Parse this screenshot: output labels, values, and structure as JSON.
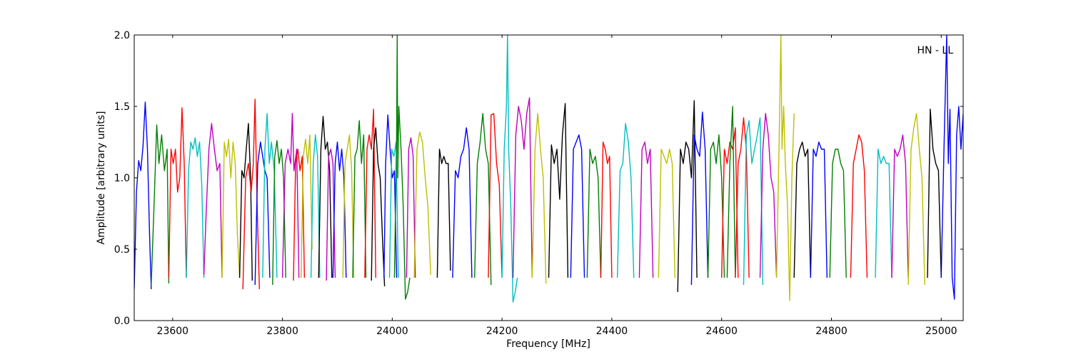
{
  "chart_data": {
    "type": "line",
    "xlabel": "Frequency [MHz]",
    "ylabel": "Amplitude [arbitrary units]",
    "xlim": [
      23530,
      25040
    ],
    "ylim": [
      0.0,
      2.0
    ],
    "xticks": [
      23600,
      23800,
      24000,
      24200,
      24400,
      24600,
      24800,
      25000
    ],
    "yticks": [
      "0.0",
      "0.5",
      "1.0",
      "1.5",
      "2.0"
    ],
    "grid": false,
    "annotation": "HN - LL",
    "colors": [
      "#0000ff",
      "#007f00",
      "#ff0000",
      "#00bfbf",
      "#bf00bf",
      "#bfbf00",
      "#000000"
    ],
    "series": [
      {
        "color": "#0000ff",
        "x": [
          23530,
          23534,
          23538,
          23542,
          23546,
          23550,
          23554,
          23558,
          23561
        ],
        "y": [
          0.22,
          0.9,
          1.12,
          1.05,
          1.22,
          1.53,
          1.2,
          0.6,
          0.22
        ]
      },
      {
        "color": "#007f00",
        "x": [
          23561,
          23566,
          23571,
          23575,
          23580,
          23585,
          23590,
          23593
        ],
        "y": [
          0.25,
          0.8,
          1.37,
          1.1,
          1.3,
          1.05,
          1.2,
          0.26
        ]
      },
      {
        "color": "#ff0000",
        "x": [
          23593,
          23597,
          23601,
          23605,
          23609,
          23613,
          23617,
          23621,
          23625
        ],
        "y": [
          0.3,
          1.2,
          1.1,
          1.2,
          0.9,
          1.0,
          1.49,
          1.1,
          0.3
        ]
      },
      {
        "color": "#00bfbf",
        "x": [
          23625,
          23629,
          23633,
          23637,
          23641,
          23645,
          23649,
          23653,
          23657
        ],
        "y": [
          0.3,
          1.05,
          1.25,
          1.2,
          1.28,
          1.15,
          1.25,
          0.95,
          0.3
        ]
      },
      {
        "color": "#bf00bf",
        "x": [
          23657,
          23661,
          23666,
          23671,
          23676,
          23681,
          23686,
          23690
        ],
        "y": [
          0.32,
          0.75,
          1.2,
          1.38,
          1.2,
          1.05,
          1.1,
          0.3
        ]
      },
      {
        "color": "#bfbf00",
        "x": [
          23690,
          23694,
          23698,
          23702,
          23706,
          23710,
          23714,
          23718,
          23722
        ],
        "y": [
          0.3,
          1.25,
          1.15,
          1.27,
          1.0,
          1.25,
          1.1,
          0.6,
          0.3
        ]
      },
      {
        "color": "#000000",
        "x": [
          23722,
          23726,
          23730,
          23734,
          23738,
          23742,
          23745
        ],
        "y": [
          0.3,
          1.05,
          1.0,
          1.2,
          1.38,
          1.0,
          0.28
        ]
      },
      {
        "color": "#ff0000",
        "x": [
          23728,
          23733,
          23738,
          23743,
          23747,
          23750,
          23754,
          23758
        ],
        "y": [
          0.22,
          1.0,
          1.1,
          0.9,
          1.1,
          1.55,
          0.8,
          0.22
        ]
      },
      {
        "color": "#0000ff",
        "x": [
          23750,
          23755,
          23760,
          23764,
          23768,
          23772,
          23777
        ],
        "y": [
          0.25,
          1.1,
          1.25,
          1.15,
          1.05,
          1.0,
          0.3
        ]
      },
      {
        "color": "#00bfbf",
        "x": [
          23764,
          23768,
          23772,
          23776,
          23780,
          23785,
          23790
        ],
        "y": [
          0.3,
          1.2,
          1.45,
          1.1,
          1.25,
          1.05,
          0.3
        ]
      },
      {
        "color": "#007f00",
        "x": [
          23782,
          23786,
          23790,
          23794,
          23798,
          23802,
          23806
        ],
        "y": [
          0.25,
          1.15,
          1.26,
          1.1,
          1.2,
          1.0,
          0.3
        ]
      },
      {
        "color": "#bf00bf",
        "x": [
          23800,
          23805,
          23810,
          23815,
          23818,
          23821,
          23826,
          23830
        ],
        "y": [
          0.3,
          1.1,
          1.2,
          1.1,
          1.45,
          1.05,
          1.2,
          0.3
        ]
      },
      {
        "color": "#ff0000",
        "x": [
          23820,
          23824,
          23828,
          23832,
          23836,
          23840
        ],
        "y": [
          0.28,
          1.1,
          1.2,
          1.05,
          1.15,
          0.3
        ]
      },
      {
        "color": "#bfbf00",
        "x": [
          23834,
          23838,
          23842,
          23846,
          23850,
          23854
        ],
        "y": [
          0.3,
          1.15,
          1.27,
          1.1,
          1.3,
          0.5
        ]
      },
      {
        "color": "#00bfbf",
        "x": [
          23852,
          23856,
          23860,
          23864,
          23868
        ],
        "y": [
          0.3,
          1.1,
          1.3,
          1.15,
          0.3
        ]
      },
      {
        "color": "#000000",
        "x": [
          23866,
          23870,
          23874,
          23878,
          23882,
          23886,
          23890
        ],
        "y": [
          0.3,
          1.2,
          1.43,
          1.2,
          1.25,
          1.05,
          0.3
        ]
      },
      {
        "color": "#bf00bf",
        "x": [
          23880,
          23884,
          23888,
          23892,
          23896
        ],
        "y": [
          0.28,
          1.15,
          1.2,
          1.1,
          0.3
        ]
      },
      {
        "color": "#0000ff",
        "x": [
          23892,
          23896,
          23900,
          23904,
          23908,
          23912,
          23916
        ],
        "y": [
          0.3,
          1.1,
          1.25,
          1.05,
          1.2,
          1.0,
          0.3
        ]
      },
      {
        "color": "#bfbf00",
        "x": [
          23910,
          23914,
          23918,
          23922,
          23926,
          23930
        ],
        "y": [
          0.3,
          1.1,
          1.2,
          1.3,
          1.05,
          0.3
        ]
      },
      {
        "color": "#007f00",
        "x": [
          23928,
          23932,
          23936,
          23940,
          23944,
          23948,
          23952
        ],
        "y": [
          0.3,
          1.15,
          1.2,
          1.4,
          1.1,
          1.3,
          0.3
        ]
      },
      {
        "color": "#ff0000",
        "x": [
          23950,
          23954,
          23958,
          23962,
          23966,
          23970
        ],
        "y": [
          0.3,
          1.2,
          1.3,
          1.2,
          1.48,
          0.3
        ]
      },
      {
        "color": "#000000",
        "x": [
          23962,
          23966,
          23970,
          23974,
          23978,
          23982,
          23986
        ],
        "y": [
          0.28,
          1.2,
          1.35,
          1.1,
          1.0,
          0.6,
          0.24
        ]
      },
      {
        "color": "#0000ff",
        "x": [
          23985,
          23988,
          23992,
          23996,
          24000,
          24004,
          24008
        ],
        "y": [
          0.3,
          1.1,
          1.44,
          1.2,
          1.0,
          1.05,
          0.3
        ]
      },
      {
        "color": "#00bfbf",
        "x": [
          23995,
          23999,
          24003,
          24007,
          24011
        ],
        "y": [
          0.3,
          1.2,
          1.15,
          1.25,
          0.3
        ]
      },
      {
        "color": "#007f00",
        "x": [
          24004,
          24008,
          24009,
          24010,
          24012,
          24016,
          24020,
          24024,
          24028,
          24032
        ],
        "y": [
          0.3,
          1.3,
          2.0,
          1.0,
          1.5,
          1.2,
          0.8,
          0.15,
          0.2,
          0.3
        ]
      },
      {
        "color": "#bf00bf",
        "x": [
          24026,
          24030,
          24034,
          24038,
          24042
        ],
        "y": [
          0.3,
          1.2,
          1.28,
          1.15,
          0.3
        ]
      },
      {
        "color": "#bfbf00",
        "x": [
          24040,
          24045,
          24050,
          24055,
          24060,
          24065,
          24070
        ],
        "y": [
          0.3,
          1.2,
          1.32,
          1.25,
          1.0,
          0.8,
          0.32
        ]
      },
      {
        "color": "#000000",
        "x": [
          24082,
          24086,
          24090,
          24094,
          24098,
          24102,
          24106
        ],
        "y": [
          0.3,
          1.2,
          1.1,
          1.15,
          1.1,
          1.1,
          0.35
        ]
      },
      {
        "color": "#0000ff",
        "x": [
          24110,
          24115,
          24120,
          24125,
          24130,
          24135,
          24140,
          24145
        ],
        "y": [
          0.3,
          1.05,
          1.0,
          1.15,
          1.2,
          1.35,
          1.2,
          0.3
        ]
      },
      {
        "color": "#007f00",
        "x": [
          24150,
          24155,
          24160,
          24165,
          24170,
          24175,
          24180
        ],
        "y": [
          0.3,
          1.1,
          1.25,
          1.45,
          1.2,
          1.1,
          0.25
        ]
      },
      {
        "color": "#ff0000",
        "x": [
          24175,
          24180,
          24185,
          24190,
          24195,
          24200
        ],
        "y": [
          0.3,
          1.44,
          1.45,
          1.1,
          0.95,
          0.3
        ]
      },
      {
        "color": "#00bfbf",
        "x": [
          24200,
          24204,
          24208,
          24210,
          24212,
          24216,
          24220,
          24224,
          24228
        ],
        "y": [
          0.3,
          1.2,
          1.5,
          2.0,
          1.2,
          0.8,
          0.13,
          0.2,
          0.3
        ]
      },
      {
        "color": "#bf00bf",
        "x": [
          24220,
          24225,
          24230,
          24235,
          24240,
          24245,
          24250,
          24255
        ],
        "y": [
          0.3,
          1.3,
          1.5,
          1.4,
          1.2,
          1.45,
          1.56,
          0.3
        ]
      },
      {
        "color": "#bfbf00",
        "x": [
          24255,
          24260,
          24265,
          24270,
          24275,
          24280
        ],
        "y": [
          0.3,
          1.2,
          1.45,
          1.2,
          1.0,
          0.26
        ]
      },
      {
        "color": "#000000",
        "x": [
          24285,
          24290,
          24295,
          24300,
          24305,
          24310,
          24315,
          24320
        ],
        "y": [
          0.3,
          1.23,
          1.1,
          1.2,
          0.85,
          1.3,
          1.52,
          0.3
        ]
      },
      {
        "color": "#0000ff",
        "x": [
          24325,
          24330,
          24335,
          24340,
          24345,
          24350
        ],
        "y": [
          0.3,
          1.2,
          1.25,
          1.3,
          1.2,
          0.3
        ]
      },
      {
        "color": "#007f00",
        "x": [
          24355,
          24360,
          24365,
          24370,
          24375,
          24380
        ],
        "y": [
          0.3,
          1.2,
          1.1,
          1.15,
          1.0,
          0.3
        ]
      },
      {
        "color": "#ff0000",
        "x": [
          24380,
          24384,
          24388,
          24392,
          24396,
          24400
        ],
        "y": [
          0.3,
          1.25,
          1.2,
          1.1,
          1.15,
          0.3
        ]
      },
      {
        "color": "#00bfbf",
        "x": [
          24410,
          24415,
          24420,
          24425,
          24430,
          24435,
          24440
        ],
        "y": [
          0.3,
          1.05,
          1.1,
          1.38,
          1.25,
          1.0,
          0.3
        ]
      },
      {
        "color": "#bf00bf",
        "x": [
          24450,
          24455,
          24460,
          24465,
          24470,
          24475
        ],
        "y": [
          0.3,
          1.2,
          1.25,
          1.1,
          1.2,
          0.3
        ]
      },
      {
        "color": "#bfbf00",
        "x": [
          24485,
          24490,
          24495,
          24500,
          24505,
          24510,
          24515
        ],
        "y": [
          0.3,
          1.2,
          1.15,
          1.1,
          1.2,
          1.1,
          0.3
        ]
      },
      {
        "color": "#000000",
        "x": [
          24520,
          24525,
          24530,
          24535,
          24540,
          24545,
          24550,
          24555
        ],
        "y": [
          0.2,
          1.2,
          1.1,
          1.25,
          1.2,
          1.0,
          1.54,
          0.3
        ]
      },
      {
        "color": "#0000ff",
        "x": [
          24545,
          24550,
          24555,
          24560,
          24565,
          24570,
          24575
        ],
        "y": [
          0.25,
          1.3,
          1.2,
          1.15,
          1.46,
          1.2,
          0.3
        ]
      },
      {
        "color": "#007f00",
        "x": [
          24575,
          24580,
          24585,
          24590,
          24595,
          24600,
          24605
        ],
        "y": [
          0.3,
          1.2,
          1.25,
          1.1,
          1.3,
          1.0,
          0.3
        ]
      },
      {
        "color": "#ff0000",
        "x": [
          24600,
          24605,
          24610,
          24615,
          24620,
          24625,
          24630
        ],
        "y": [
          0.3,
          1.2,
          1.1,
          1.25,
          1.2,
          1.35,
          0.3
        ]
      },
      {
        "color": "#007f00",
        "x": [
          24610,
          24615,
          24620,
          24625
        ],
        "y": [
          0.3,
          1.1,
          1.5,
          0.3
        ]
      },
      {
        "color": "#ff0000",
        "x": [
          24625,
          24630,
          24635,
          24640,
          24645,
          24650
        ],
        "y": [
          0.3,
          1.1,
          1.2,
          1.42,
          1.2,
          0.3
        ]
      },
      {
        "color": "#00bfbf",
        "x": [
          24640,
          24645,
          24650,
          24655,
          24660,
          24665,
          24670,
          24675
        ],
        "y": [
          0.25,
          1.3,
          1.4,
          1.1,
          1.2,
          1.3,
          1.42,
          0.25
        ]
      },
      {
        "color": "#bf00bf",
        "x": [
          24670,
          24675,
          24680,
          24685,
          24690,
          24695,
          24700
        ],
        "y": [
          0.3,
          1.2,
          1.45,
          1.3,
          1.0,
          0.9,
          0.3
        ]
      },
      {
        "color": "#bfbf00",
        "x": [
          24700,
          24705,
          24708,
          24710,
          24713,
          24716,
          24720,
          24724,
          24728,
          24732
        ],
        "y": [
          0.3,
          1.3,
          2.0,
          1.2,
          1.5,
          1.1,
          0.8,
          0.14,
          1.0,
          1.45
        ]
      },
      {
        "color": "#000000",
        "x": [
          24732,
          24737,
          24742,
          24747,
          24752,
          24757,
          24762
        ],
        "y": [
          0.3,
          1.1,
          1.2,
          1.25,
          1.15,
          1.2,
          0.3
        ]
      },
      {
        "color": "#0000ff",
        "x": [
          24762,
          24767,
          24772,
          24777,
          24782,
          24787,
          24792
        ],
        "y": [
          0.3,
          1.2,
          1.15,
          1.25,
          1.2,
          1.2,
          0.3
        ]
      },
      {
        "color": "#007f00",
        "x": [
          24797,
          24802,
          24807,
          24812,
          24817,
          24822,
          24827
        ],
        "y": [
          0.3,
          1.1,
          1.2,
          1.2,
          1.1,
          1.05,
          0.3
        ]
      },
      {
        "color": "#ff0000",
        "x": [
          24835,
          24840,
          24845,
          24850,
          24855,
          24860,
          24865
        ],
        "y": [
          0.3,
          1.1,
          1.2,
          1.3,
          1.25,
          1.05,
          0.3
        ]
      },
      {
        "color": "#00bfbf",
        "x": [
          24880,
          24885,
          24890,
          24895,
          24900,
          24905,
          24910
        ],
        "y": [
          0.3,
          1.2,
          1.1,
          1.15,
          1.1,
          1.1,
          0.3
        ]
      },
      {
        "color": "#bf00bf",
        "x": [
          24910,
          24915,
          24920,
          24925,
          24930,
          24935,
          24940
        ],
        "y": [
          0.3,
          1.2,
          1.15,
          1.2,
          1.3,
          1.1,
          0.3
        ]
      },
      {
        "color": "#bfbf00",
        "x": [
          24940,
          24945,
          24950,
          24955,
          24960,
          24965,
          24970
        ],
        "y": [
          0.25,
          1.2,
          1.35,
          1.45,
          1.2,
          1.0,
          0.25
        ]
      },
      {
        "color": "#000000",
        "x": [
          24975,
          24980,
          24985,
          24990,
          24995,
          25000
        ],
        "y": [
          0.3,
          1.48,
          1.2,
          1.1,
          1.05,
          0.3
        ]
      },
      {
        "color": "#0000ff",
        "x": [
          25000,
          25005,
          25010,
          25013,
          25016,
          25020,
          25024,
          25028,
          25032,
          25036,
          25040
        ],
        "y": [
          0.3,
          1.2,
          2.0,
          1.1,
          1.48,
          0.3,
          0.15,
          1.3,
          1.5,
          1.2,
          1.45
        ]
      }
    ]
  }
}
